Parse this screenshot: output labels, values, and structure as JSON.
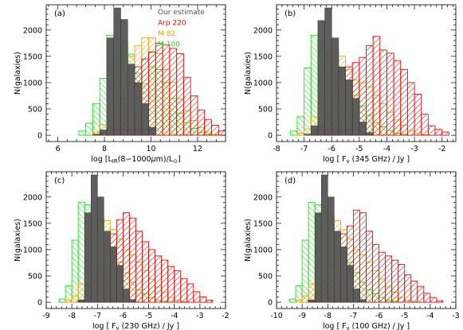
{
  "colors": {
    "estimate": "#555555",
    "arp220": "#e01010",
    "m82": "#f0a000",
    "m100": "#22dd22"
  },
  "legend": [
    {
      "label": "Our estimate",
      "color": "#555555"
    },
    {
      "label": "Arp 220",
      "color": "#e01010"
    },
    {
      "label": "M 82",
      "color": "#f0a000"
    },
    {
      "label": "M 100",
      "color": "#22dd22"
    }
  ],
  "chart_data": [
    {
      "type": "bar",
      "panel": "(a)",
      "ylabel": "N(galaxies)",
      "xlabel_html": "log [L<tspan font-size='7' dy='2'>IR</tspan><tspan dy='-2'>(8−1000</tspan><tspan font-style='italic'>μ</tspan>m)/L<tspan font-size='7' dy='2'>⊙</tspan><tspan dy='-2'>]</tspan>",
      "xlim": [
        5.5,
        13.2
      ],
      "ylim": [
        -120,
        2480
      ],
      "xticks": [
        6,
        8,
        10,
        12
      ],
      "xtick_labels": [
        "6",
        "8",
        "10",
        "12"
      ],
      "yticks": [
        0,
        500,
        1000,
        1500,
        2000
      ],
      "ytick_labels": [
        "0",
        "500",
        "1000",
        "1500",
        "2000"
      ],
      "bin_start": 6.9,
      "bin_width": 0.3,
      "series": [
        {
          "name": "M 100",
          "values": [
            80,
            230,
            600,
            1080,
            1900,
            1500,
            1780,
            1540,
            1180,
            980,
            1300,
            1250,
            1000,
            700,
            420,
            240,
            130,
            60,
            20,
            0,
            0,
            0
          ]
        },
        {
          "name": "M 82",
          "values": [
            0,
            0,
            60,
            200,
            520,
            880,
            1280,
            1500,
            1700,
            1850,
            1850,
            1550,
            1250,
            1010,
            690,
            460,
            280,
            150,
            60,
            20,
            0,
            0
          ]
        },
        {
          "name": "Arp 220",
          "values": [
            0,
            0,
            0,
            40,
            150,
            400,
            700,
            1000,
            1300,
            1450,
            1580,
            1750,
            1720,
            1650,
            1550,
            1100,
            750,
            480,
            300,
            190,
            80,
            30
          ]
        },
        {
          "name": "Our estimate",
          "values": [
            0,
            0,
            20,
            100,
            1850,
            2420,
            2200,
            1350,
            1000,
            600,
            150,
            0,
            0,
            0,
            0,
            0,
            0,
            0,
            0,
            0,
            0,
            0
          ]
        }
      ]
    },
    {
      "type": "bar",
      "panel": "(b)",
      "ylabel": "N(galaxies)",
      "xlabel_html": "log [ F<tspan font-size='7' dy='2'>ν</tspan><tspan dy='-2'> (345 GHz) / Jy ]</tspan>",
      "xlim": [
        -8,
        -1.5
      ],
      "ylim": [
        -120,
        2480
      ],
      "xticks": [
        -8,
        -7,
        -6,
        -5,
        -4,
        -3,
        -2
      ],
      "xtick_labels": [
        "-8",
        "-7",
        "-6",
        "-5",
        "-4",
        "-3",
        "-2"
      ],
      "yticks": [
        0,
        500,
        1000,
        1500,
        2000
      ],
      "ytick_labels": [
        "0",
        "500",
        "1000",
        "1500",
        "2000"
      ],
      "bin_start": -7.5,
      "bin_width": 0.25,
      "series": [
        {
          "name": "M 100",
          "values": [
            80,
            350,
            1280,
            1900,
            1800,
            1580,
            1480,
            1280,
            1050,
            760,
            560,
            380,
            240,
            160,
            90,
            40,
            20,
            0,
            0,
            0,
            0,
            0,
            0
          ]
        },
        {
          "name": "M 82",
          "values": [
            0,
            40,
            120,
            350,
            800,
            1200,
            1630,
            1500,
            1250,
            1050,
            1000,
            920,
            760,
            600,
            440,
            290,
            190,
            90,
            40,
            10,
            0,
            0,
            0
          ]
        },
        {
          "name": "Arp 220",
          "values": [
            0,
            0,
            0,
            40,
            150,
            400,
            700,
            1000,
            1300,
            1380,
            1480,
            1700,
            1880,
            1620,
            1560,
            1420,
            1250,
            1000,
            780,
            400,
            180,
            110,
            60
          ]
        },
        {
          "name": "Our estimate",
          "values": [
            0,
            0,
            20,
            180,
            2180,
            2420,
            1850,
            1300,
            1050,
            700,
            250,
            50,
            0,
            0,
            0,
            0,
            0,
            0,
            0,
            0,
            0,
            0,
            0
          ]
        }
      ]
    },
    {
      "type": "bar",
      "panel": "(c)",
      "ylabel": "N(galaxies)",
      "xlabel_html": "log [ F<tspan font-size='7' dy='2'>ν</tspan><tspan dy='-2'> (230 GHz) / Jy ]</tspan>",
      "xlim": [
        -9,
        -2
      ],
      "ylim": [
        -120,
        2480
      ],
      "xticks": [
        -9,
        -8,
        -7,
        -6,
        -5,
        -4,
        -3,
        -2
      ],
      "xtick_labels": [
        "-9",
        "-8",
        "-7",
        "-6",
        "-5",
        "-4",
        "-3",
        "-2"
      ],
      "yticks": [
        0,
        500,
        1000,
        1500,
        2000
      ],
      "ytick_labels": [
        "0",
        "500",
        "1000",
        "1500",
        "2000"
      ],
      "bin_start": -8.5,
      "bin_width": 0.25,
      "series": [
        {
          "name": "M 100",
          "values": [
            60,
            310,
            1180,
            1900,
            1850,
            1750,
            1550,
            1280,
            1050,
            760,
            560,
            380,
            240,
            160,
            90,
            40,
            20,
            0,
            0,
            0,
            0,
            0,
            0,
            0
          ]
        },
        {
          "name": "M 82",
          "values": [
            0,
            40,
            120,
            350,
            800,
            1250,
            1600,
            1550,
            1380,
            1200,
            1000,
            900,
            760,
            600,
            440,
            290,
            190,
            90,
            40,
            10,
            0,
            0,
            0,
            0
          ]
        },
        {
          "name": "Arp 220",
          "values": [
            0,
            0,
            0,
            40,
            150,
            400,
            700,
            1000,
            1300,
            1570,
            1700,
            1600,
            1350,
            1150,
            1000,
            880,
            800,
            680,
            600,
            450,
            350,
            200,
            100,
            40
          ]
        },
        {
          "name": "Our estimate",
          "values": [
            0,
            0,
            0,
            40,
            1700,
            2420,
            2000,
            1350,
            1050,
            700,
            250,
            50,
            0,
            0,
            0,
            0,
            0,
            0,
            0,
            0,
            0,
            0,
            0,
            0
          ]
        }
      ]
    },
    {
      "type": "bar",
      "panel": "(d)",
      "ylabel": "N(galaxies)",
      "xlabel_html": "log [ F<tspan font-size='7' dy='2'>ν</tspan><tspan dy='-2'> (100 GHz) / Jy ]</tspan>",
      "xlim": [
        -10,
        -3
      ],
      "ylim": [
        -120,
        2480
      ],
      "xticks": [
        -10,
        -9,
        -8,
        -7,
        -6,
        -5,
        -4,
        -3
      ],
      "xtick_labels": [
        "-10",
        "-9",
        "-8",
        "-7",
        "-6",
        "-5",
        "-4",
        "-3"
      ],
      "yticks": [
        0,
        500,
        1000,
        1500,
        2000
      ],
      "ytick_labels": [
        "0",
        "500",
        "1000",
        "1500",
        "2000"
      ],
      "bin_start": -9.5,
      "bin_width": 0.25,
      "series": [
        {
          "name": "M 100",
          "values": [
            60,
            310,
            1180,
            1900,
            1850,
            1750,
            1500,
            1280,
            1050,
            760,
            560,
            380,
            240,
            160,
            90,
            40,
            20,
            0,
            0,
            0,
            0,
            0,
            0,
            0
          ]
        },
        {
          "name": "M 82",
          "values": [
            0,
            40,
            120,
            350,
            800,
            1250,
            1650,
            1550,
            1380,
            1200,
            1000,
            900,
            760,
            600,
            440,
            290,
            190,
            90,
            40,
            10,
            0,
            0,
            0,
            0
          ]
        },
        {
          "name": "Arp 220",
          "values": [
            0,
            0,
            0,
            40,
            150,
            400,
            700,
            1000,
            1300,
            1450,
            1750,
            1700,
            1350,
            1100,
            950,
            880,
            800,
            720,
            520,
            400,
            300,
            170,
            90,
            30
          ]
        },
        {
          "name": "Our estimate",
          "values": [
            0,
            0,
            0,
            40,
            1700,
            2420,
            2000,
            1350,
            1050,
            700,
            250,
            50,
            0,
            0,
            0,
            0,
            0,
            0,
            0,
            0,
            0,
            0,
            0,
            0
          ]
        }
      ]
    }
  ]
}
